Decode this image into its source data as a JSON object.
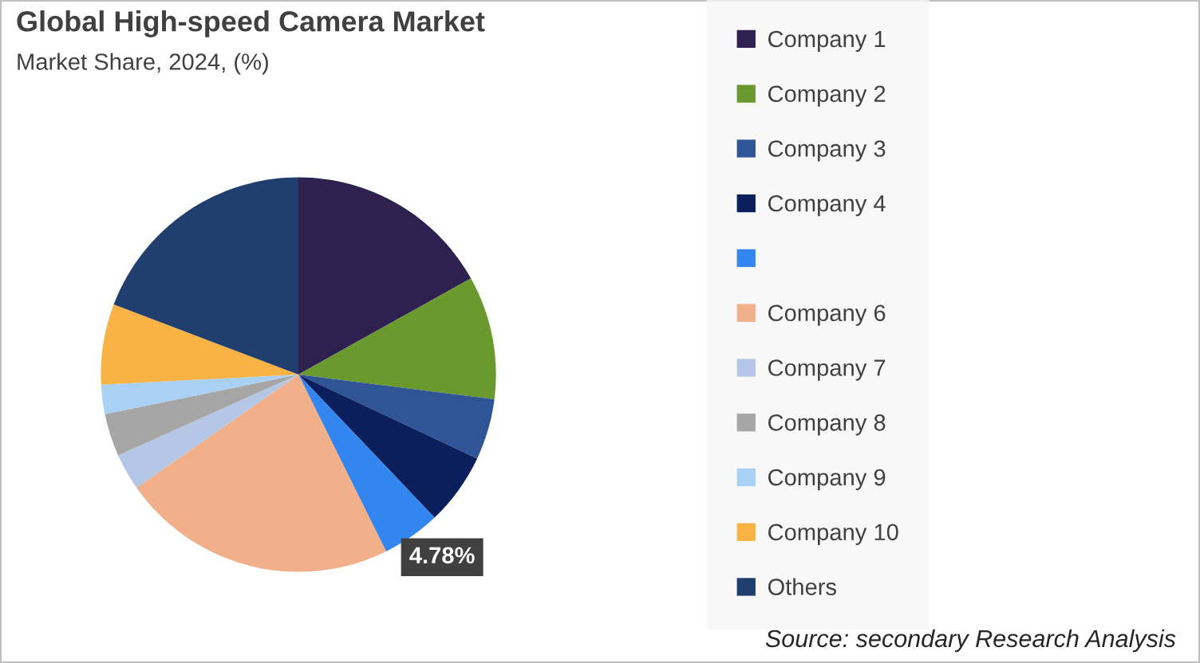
{
  "chart_data": {
    "type": "pie",
    "title": "Global High-speed Camera Market",
    "subtitle": "Market Share, 2024, (%)",
    "categories": [
      "Company 1",
      "Company 2",
      "Company 3",
      "Company 4",
      null,
      "Company 6",
      "Company 7",
      "Company 8",
      "Company 9",
      "Company 10",
      "Others"
    ],
    "values": [
      16.9,
      10.1,
      5.0,
      5.9,
      4.78,
      22.6,
      3.0,
      3.5,
      2.4,
      6.6,
      19.22
    ],
    "colors": [
      "#2e2150",
      "#6a9a2e",
      "#2f5597",
      "#0b1f5c",
      "#3386f0",
      "#f1b08a",
      "#b4c7e7",
      "#a6a6a6",
      "#a9d0f5",
      "#f9b244",
      "#203f6e"
    ],
    "value_labels": [
      null,
      null,
      null,
      null,
      "4.78%",
      null,
      null,
      null,
      null,
      null,
      null
    ],
    "legend": "right",
    "annotations": [
      "Source: secondary Research Analysis"
    ]
  }
}
